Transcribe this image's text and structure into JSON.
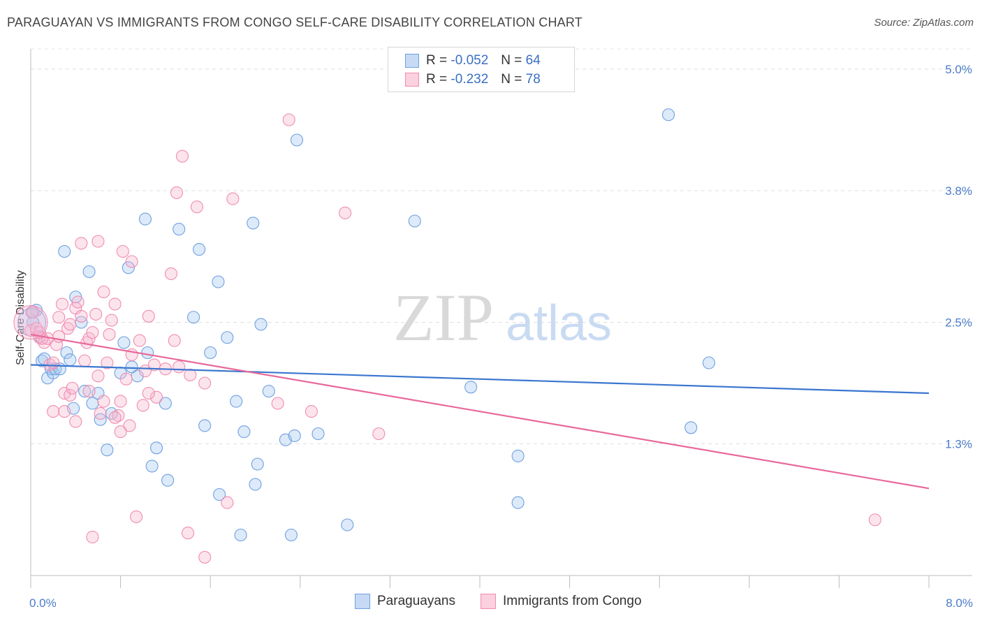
{
  "title": "PARAGUAYAN VS IMMIGRANTS FROM CONGO SELF-CARE DISABILITY CORRELATION CHART",
  "source": "Source: ZipAtlas.com",
  "watermark": {
    "zip": "ZIP",
    "atlas": "atlas"
  },
  "legend_top": {
    "rows": [
      {
        "r_label": "R =",
        "r_value": "-0.052",
        "n_label": "N =",
        "n_value": "64",
        "color": "#6fa0e0"
      },
      {
        "r_label": "R =",
        "r_value": "-0.232",
        "n_label": "N =",
        "n_value": "78",
        "color": "#f08cb0"
      }
    ]
  },
  "legend_bottom": {
    "items": [
      {
        "label": "Paraguayans",
        "color": "#6fa0e0"
      },
      {
        "label": "Immigrants from Congo",
        "color": "#f08cb0"
      }
    ]
  },
  "chart_data": {
    "type": "scatter",
    "title": "PARAGUAYAN VS IMMIGRANTS FROM CONGO SELF-CARE DISABILITY CORRELATION CHART",
    "xlabel": "",
    "ylabel": "Self-Care Disability",
    "xlim": [
      0,
      8
    ],
    "ylim": [
      0,
      5.2
    ],
    "x_tick_labels": [
      "0.0%",
      "8.0%"
    ],
    "y_ticks": [
      1.3,
      2.5,
      3.8,
      5.0
    ],
    "y_tick_labels": [
      "1.3%",
      "2.5%",
      "3.8%",
      "5.0%"
    ],
    "grid": true,
    "legend_position": "top-center",
    "series": [
      {
        "name": "Paraguayans",
        "color": "#6fa0e0",
        "trend": {
          "x0": 0,
          "y0": 2.08,
          "x1": 8,
          "y1": 1.8
        },
        "points": [
          [
            0.02,
            2.5
          ],
          [
            0.05,
            2.62
          ],
          [
            0.08,
            2.36
          ],
          [
            0.1,
            2.12
          ],
          [
            0.12,
            2.14
          ],
          [
            0.15,
            1.95
          ],
          [
            0.18,
            2.04
          ],
          [
            0.2,
            2.0
          ],
          [
            0.22,
            2.04
          ],
          [
            0.26,
            2.04
          ],
          [
            0.3,
            3.2
          ],
          [
            0.32,
            2.2
          ],
          [
            0.35,
            2.13
          ],
          [
            0.38,
            1.65
          ],
          [
            0.4,
            2.75
          ],
          [
            0.45,
            2.5
          ],
          [
            0.48,
            1.82
          ],
          [
            0.52,
            3.0
          ],
          [
            0.55,
            1.7
          ],
          [
            0.6,
            1.8
          ],
          [
            0.62,
            1.54
          ],
          [
            0.68,
            1.24
          ],
          [
            0.72,
            1.6
          ],
          [
            0.8,
            2.0
          ],
          [
            0.83,
            2.3
          ],
          [
            0.87,
            3.04
          ],
          [
            0.9,
            2.06
          ],
          [
            0.95,
            1.97
          ],
          [
            1.02,
            3.52
          ],
          [
            1.04,
            2.2
          ],
          [
            1.08,
            1.08
          ],
          [
            1.12,
            1.26
          ],
          [
            1.2,
            1.7
          ],
          [
            1.22,
            0.94
          ],
          [
            1.32,
            3.42
          ],
          [
            1.45,
            2.55
          ],
          [
            1.5,
            3.22
          ],
          [
            1.55,
            1.48
          ],
          [
            1.6,
            2.2
          ],
          [
            1.67,
            2.9
          ],
          [
            1.68,
            0.8
          ],
          [
            1.75,
            2.35
          ],
          [
            1.83,
            1.72
          ],
          [
            1.87,
            0.4
          ],
          [
            1.9,
            1.42
          ],
          [
            1.98,
            3.48
          ],
          [
            2.0,
            0.9
          ],
          [
            2.02,
            1.1
          ],
          [
            2.05,
            2.48
          ],
          [
            2.12,
            1.82
          ],
          [
            2.27,
            1.34
          ],
          [
            2.32,
            0.4
          ],
          [
            2.35,
            1.38
          ],
          [
            2.37,
            4.3
          ],
          [
            2.56,
            1.4
          ],
          [
            2.82,
            0.5
          ],
          [
            3.42,
            3.5
          ],
          [
            3.92,
            1.86
          ],
          [
            4.34,
            1.18
          ],
          [
            4.34,
            0.72
          ],
          [
            5.68,
            4.55
          ],
          [
            5.88,
            1.46
          ],
          [
            6.04,
            2.1
          ],
          [
            0.01,
            2.6
          ]
        ]
      },
      {
        "name": "Immigrants from Congo",
        "color": "#f08cb0",
        "trend": {
          "x0": 0,
          "y0": 2.38,
          "x1": 8,
          "y1": 0.86
        },
        "points": [
          [
            0.0,
            2.42
          ],
          [
            0.02,
            2.6
          ],
          [
            0.05,
            2.44
          ],
          [
            0.08,
            2.35
          ],
          [
            0.12,
            2.3
          ],
          [
            0.15,
            2.34
          ],
          [
            0.17,
            2.08
          ],
          [
            0.2,
            2.1
          ],
          [
            0.23,
            2.28
          ],
          [
            0.25,
            2.55
          ],
          [
            0.28,
            2.68
          ],
          [
            0.3,
            1.8
          ],
          [
            0.33,
            2.44
          ],
          [
            0.35,
            1.78
          ],
          [
            0.37,
            1.85
          ],
          [
            0.4,
            2.64
          ],
          [
            0.42,
            2.7
          ],
          [
            0.45,
            2.56
          ],
          [
            0.48,
            2.12
          ],
          [
            0.5,
            2.3
          ],
          [
            0.52,
            2.34
          ],
          [
            0.55,
            2.4
          ],
          [
            0.58,
            2.58
          ],
          [
            0.6,
            1.97
          ],
          [
            0.62,
            1.6
          ],
          [
            0.65,
            2.8
          ],
          [
            0.68,
            2.1
          ],
          [
            0.72,
            2.52
          ],
          [
            0.75,
            2.68
          ],
          [
            0.78,
            1.58
          ],
          [
            0.8,
            1.72
          ],
          [
            0.82,
            3.2
          ],
          [
            0.85,
            1.94
          ],
          [
            0.88,
            1.48
          ],
          [
            0.9,
            2.18
          ],
          [
            0.94,
            0.58
          ],
          [
            0.97,
            2.32
          ],
          [
            1.0,
            1.68
          ],
          [
            1.02,
            2.02
          ],
          [
            1.05,
            2.56
          ],
          [
            1.1,
            2.08
          ],
          [
            1.12,
            1.76
          ],
          [
            1.2,
            2.04
          ],
          [
            1.25,
            2.98
          ],
          [
            1.28,
            2.32
          ],
          [
            1.32,
            2.06
          ],
          [
            1.35,
            4.14
          ],
          [
            1.4,
            0.42
          ],
          [
            1.42,
            1.98
          ],
          [
            1.48,
            3.64
          ],
          [
            1.55,
            1.9
          ],
          [
            1.55,
            0.18
          ],
          [
            1.75,
            0.72
          ],
          [
            1.8,
            3.72
          ],
          [
            2.2,
            1.7
          ],
          [
            2.3,
            4.5
          ],
          [
            2.5,
            1.62
          ],
          [
            2.8,
            3.58
          ],
          [
            3.1,
            1.4
          ],
          [
            7.52,
            0.55
          ],
          [
            0.3,
            1.62
          ],
          [
            0.35,
            2.48
          ],
          [
            0.45,
            3.28
          ],
          [
            0.52,
            1.82
          ],
          [
            0.6,
            3.3
          ],
          [
            0.65,
            1.72
          ],
          [
            0.7,
            2.38
          ],
          [
            0.75,
            1.56
          ],
          [
            0.8,
            1.42
          ],
          [
            0.9,
            3.1
          ],
          [
            1.05,
            1.8
          ],
          [
            1.3,
            3.78
          ],
          [
            0.1,
            2.34
          ],
          [
            0.2,
            1.62
          ],
          [
            0.4,
            1.52
          ],
          [
            0.55,
            0.38
          ],
          [
            0.25,
            2.36
          ],
          [
            0.08,
            2.4
          ]
        ]
      }
    ]
  }
}
